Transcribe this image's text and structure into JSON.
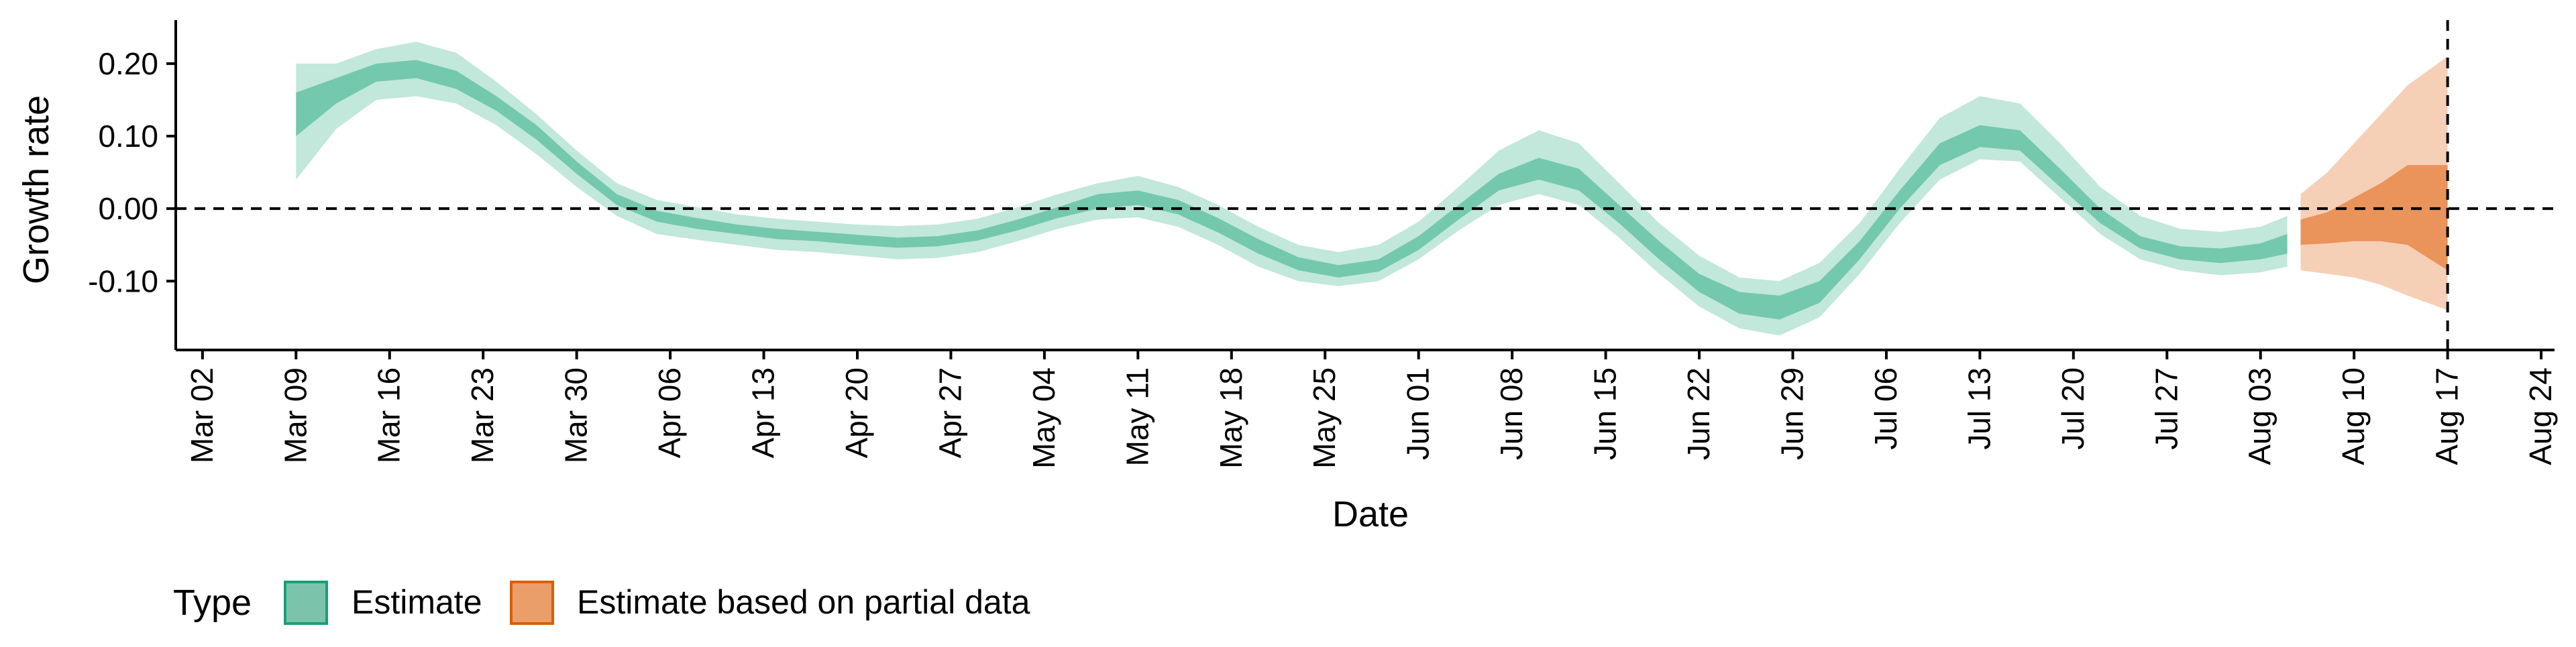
{
  "chart_data": {
    "type": "area",
    "xlabel": "Date",
    "ylabel": "Growth rate",
    "ylim": [
      -0.195,
      0.26
    ],
    "y_ticks": [
      {
        "value": 0.2,
        "label": "0.20"
      },
      {
        "value": 0.1,
        "label": "0.10"
      },
      {
        "value": 0.0,
        "label": "0.00"
      },
      {
        "value": -0.1,
        "label": "-0.10"
      }
    ],
    "xlim": [
      "2020-02-29",
      "2020-08-25"
    ],
    "x_ticks": [
      {
        "date": "2020-03-02",
        "label": "Mar 02"
      },
      {
        "date": "2020-03-09",
        "label": "Mar 09"
      },
      {
        "date": "2020-03-16",
        "label": "Mar 16"
      },
      {
        "date": "2020-03-23",
        "label": "Mar 23"
      },
      {
        "date": "2020-03-30",
        "label": "Mar 30"
      },
      {
        "date": "2020-04-06",
        "label": "Apr 06"
      },
      {
        "date": "2020-04-13",
        "label": "Apr 13"
      },
      {
        "date": "2020-04-20",
        "label": "Apr 20"
      },
      {
        "date": "2020-04-27",
        "label": "Apr 27"
      },
      {
        "date": "2020-05-04",
        "label": "May 04"
      },
      {
        "date": "2020-05-11",
        "label": "May 11"
      },
      {
        "date": "2020-05-18",
        "label": "May 18"
      },
      {
        "date": "2020-05-25",
        "label": "May 25"
      },
      {
        "date": "2020-06-01",
        "label": "Jun 01"
      },
      {
        "date": "2020-06-08",
        "label": "Jun 08"
      },
      {
        "date": "2020-06-15",
        "label": "Jun 15"
      },
      {
        "date": "2020-06-22",
        "label": "Jun 22"
      },
      {
        "date": "2020-06-29",
        "label": "Jun 29"
      },
      {
        "date": "2020-07-06",
        "label": "Jul 06"
      },
      {
        "date": "2020-07-13",
        "label": "Jul 13"
      },
      {
        "date": "2020-07-20",
        "label": "Jul 20"
      },
      {
        "date": "2020-07-27",
        "label": "Jul 27"
      },
      {
        "date": "2020-08-03",
        "label": "Aug 03"
      },
      {
        "date": "2020-08-10",
        "label": "Aug 10"
      },
      {
        "date": "2020-08-17",
        "label": "Aug 17"
      },
      {
        "date": "2020-08-24",
        "label": "Aug 24"
      }
    ],
    "reference_lines": {
      "horizontal_y": 0.0,
      "vertical_date": "2020-08-17",
      "style": "dashed"
    },
    "legend": {
      "title": "Type",
      "position": "bottom-left",
      "items": [
        {
          "label": "Estimate",
          "color": "#66C2A5"
        },
        {
          "label": "Estimate based on partial data",
          "color": "#E8884A"
        }
      ]
    },
    "series": [
      {
        "name": "Estimate",
        "color": "#66C2A5",
        "points": [
          {
            "x": "2020-03-09",
            "lo90": 0.04,
            "lo50": 0.1,
            "hi50": 0.16,
            "hi90": 0.2
          },
          {
            "x": "2020-03-12",
            "lo90": 0.11,
            "lo50": 0.145,
            "hi50": 0.18,
            "hi90": 0.2
          },
          {
            "x": "2020-03-15",
            "lo90": 0.15,
            "lo50": 0.175,
            "hi50": 0.2,
            "hi90": 0.22
          },
          {
            "x": "2020-03-18",
            "lo90": 0.155,
            "lo50": 0.18,
            "hi50": 0.205,
            "hi90": 0.23
          },
          {
            "x": "2020-03-21",
            "lo90": 0.145,
            "lo50": 0.165,
            "hi50": 0.19,
            "hi90": 0.215
          },
          {
            "x": "2020-03-24",
            "lo90": 0.115,
            "lo50": 0.135,
            "hi50": 0.155,
            "hi90": 0.175
          },
          {
            "x": "2020-03-27",
            "lo90": 0.075,
            "lo50": 0.095,
            "hi50": 0.115,
            "hi90": 0.13
          },
          {
            "x": "2020-03-30",
            "lo90": 0.03,
            "lo50": 0.048,
            "hi50": 0.065,
            "hi90": 0.08
          },
          {
            "x": "2020-04-02",
            "lo90": -0.01,
            "lo50": 0.005,
            "hi50": 0.02,
            "hi90": 0.035
          },
          {
            "x": "2020-04-05",
            "lo90": -0.035,
            "lo50": -0.018,
            "hi50": -0.003,
            "hi90": 0.012
          },
          {
            "x": "2020-04-08",
            "lo90": -0.043,
            "lo50": -0.028,
            "hi50": -0.013,
            "hi90": 0.002
          },
          {
            "x": "2020-04-11",
            "lo90": -0.05,
            "lo50": -0.035,
            "hi50": -0.022,
            "hi90": -0.008
          },
          {
            "x": "2020-04-14",
            "lo90": -0.057,
            "lo50": -0.042,
            "hi50": -0.028,
            "hi90": -0.014
          },
          {
            "x": "2020-04-17",
            "lo90": -0.06,
            "lo50": -0.045,
            "hi50": -0.032,
            "hi90": -0.018
          },
          {
            "x": "2020-04-20",
            "lo90": -0.065,
            "lo50": -0.05,
            "hi50": -0.036,
            "hi90": -0.022
          },
          {
            "x": "2020-04-23",
            "lo90": -0.07,
            "lo50": -0.054,
            "hi50": -0.04,
            "hi90": -0.024
          },
          {
            "x": "2020-04-26",
            "lo90": -0.068,
            "lo50": -0.052,
            "hi50": -0.038,
            "hi90": -0.022
          },
          {
            "x": "2020-04-29",
            "lo90": -0.06,
            "lo50": -0.044,
            "hi50": -0.03,
            "hi90": -0.014
          },
          {
            "x": "2020-05-02",
            "lo90": -0.045,
            "lo50": -0.03,
            "hi50": -0.015,
            "hi90": 0.002
          },
          {
            "x": "2020-05-05",
            "lo90": -0.028,
            "lo50": -0.013,
            "hi50": 0.002,
            "hi90": 0.02
          },
          {
            "x": "2020-05-08",
            "lo90": -0.015,
            "lo50": 0.0,
            "hi50": 0.02,
            "hi90": 0.035
          },
          {
            "x": "2020-05-11",
            "lo90": -0.012,
            "lo50": 0.005,
            "hi50": 0.025,
            "hi90": 0.045
          },
          {
            "x": "2020-05-14",
            "lo90": -0.025,
            "lo50": -0.008,
            "hi50": 0.012,
            "hi90": 0.03
          },
          {
            "x": "2020-05-17",
            "lo90": -0.05,
            "lo50": -0.033,
            "hi50": -0.013,
            "hi90": 0.005
          },
          {
            "x": "2020-05-20",
            "lo90": -0.08,
            "lo50": -0.062,
            "hi50": -0.042,
            "hi90": -0.025
          },
          {
            "x": "2020-05-23",
            "lo90": -0.1,
            "lo50": -0.085,
            "hi50": -0.067,
            "hi90": -0.05
          },
          {
            "x": "2020-05-26",
            "lo90": -0.107,
            "lo50": -0.095,
            "hi50": -0.078,
            "hi90": -0.06
          },
          {
            "x": "2020-05-29",
            "lo90": -0.1,
            "lo50": -0.087,
            "hi50": -0.07,
            "hi90": -0.05
          },
          {
            "x": "2020-06-01",
            "lo90": -0.07,
            "lo50": -0.057,
            "hi50": -0.038,
            "hi90": -0.018
          },
          {
            "x": "2020-06-04",
            "lo90": -0.03,
            "lo50": -0.015,
            "hi50": 0.005,
            "hi90": 0.03
          },
          {
            "x": "2020-06-07",
            "lo90": 0.005,
            "lo50": 0.025,
            "hi50": 0.048,
            "hi90": 0.08
          },
          {
            "x": "2020-06-10",
            "lo90": 0.02,
            "lo50": 0.04,
            "hi50": 0.07,
            "hi90": 0.108
          },
          {
            "x": "2020-06-13",
            "lo90": 0.005,
            "lo50": 0.025,
            "hi50": 0.055,
            "hi90": 0.09
          },
          {
            "x": "2020-06-16",
            "lo90": -0.04,
            "lo50": -0.02,
            "hi50": 0.005,
            "hi90": 0.035
          },
          {
            "x": "2020-06-19",
            "lo90": -0.09,
            "lo50": -0.07,
            "hi50": -0.045,
            "hi90": -0.02
          },
          {
            "x": "2020-06-22",
            "lo90": -0.135,
            "lo50": -0.115,
            "hi50": -0.09,
            "hi90": -0.065
          },
          {
            "x": "2020-06-25",
            "lo90": -0.165,
            "lo50": -0.145,
            "hi50": -0.115,
            "hi90": -0.095
          },
          {
            "x": "2020-06-28",
            "lo90": -0.175,
            "lo50": -0.153,
            "hi50": -0.12,
            "hi90": -0.1
          },
          {
            "x": "2020-07-01",
            "lo90": -0.15,
            "lo50": -0.13,
            "hi50": -0.1,
            "hi90": -0.075
          },
          {
            "x": "2020-07-04",
            "lo90": -0.09,
            "lo50": -0.07,
            "hi50": -0.045,
            "hi90": -0.02
          },
          {
            "x": "2020-07-07",
            "lo90": -0.02,
            "lo50": 0.0,
            "hi50": 0.025,
            "hi90": 0.055
          },
          {
            "x": "2020-07-10",
            "lo90": 0.04,
            "lo50": 0.06,
            "hi50": 0.09,
            "hi90": 0.125
          },
          {
            "x": "2020-07-13",
            "lo90": 0.068,
            "lo50": 0.085,
            "hi50": 0.115,
            "hi90": 0.155
          },
          {
            "x": "2020-07-16",
            "lo90": 0.065,
            "lo50": 0.08,
            "hi50": 0.108,
            "hi90": 0.145
          },
          {
            "x": "2020-07-19",
            "lo90": 0.015,
            "lo50": 0.03,
            "hi50": 0.055,
            "hi90": 0.09
          },
          {
            "x": "2020-07-22",
            "lo90": -0.035,
            "lo50": -0.02,
            "hi50": 0.0,
            "hi90": 0.03
          },
          {
            "x": "2020-07-25",
            "lo90": -0.07,
            "lo50": -0.055,
            "hi50": -0.038,
            "hi90": -0.01
          },
          {
            "x": "2020-07-28",
            "lo90": -0.085,
            "lo50": -0.07,
            "hi50": -0.052,
            "hi90": -0.028
          },
          {
            "x": "2020-07-31",
            "lo90": -0.092,
            "lo50": -0.075,
            "hi50": -0.055,
            "hi90": -0.032
          },
          {
            "x": "2020-08-03",
            "lo90": -0.088,
            "lo50": -0.07,
            "hi50": -0.048,
            "hi90": -0.025
          },
          {
            "x": "2020-08-05",
            "lo90": -0.08,
            "lo50": -0.062,
            "hi50": -0.035,
            "hi90": -0.01
          }
        ]
      },
      {
        "name": "Estimate based on partial data",
        "color": "#E8884A",
        "points": [
          {
            "x": "2020-08-06",
            "lo90": -0.085,
            "lo50": -0.05,
            "hi50": -0.015,
            "hi90": 0.02
          },
          {
            "x": "2020-08-08",
            "lo90": -0.09,
            "lo50": -0.048,
            "hi50": -0.005,
            "hi90": 0.05
          },
          {
            "x": "2020-08-10",
            "lo90": -0.095,
            "lo50": -0.045,
            "hi50": 0.015,
            "hi90": 0.09
          },
          {
            "x": "2020-08-12",
            "lo90": -0.105,
            "lo50": -0.045,
            "hi50": 0.035,
            "hi90": 0.13
          },
          {
            "x": "2020-08-14",
            "lo90": -0.12,
            "lo50": -0.05,
            "hi50": 0.06,
            "hi90": 0.17
          },
          {
            "x": "2020-08-17",
            "lo90": -0.14,
            "lo50": -0.085,
            "hi50": 0.06,
            "hi90": 0.21
          }
        ]
      }
    ]
  }
}
